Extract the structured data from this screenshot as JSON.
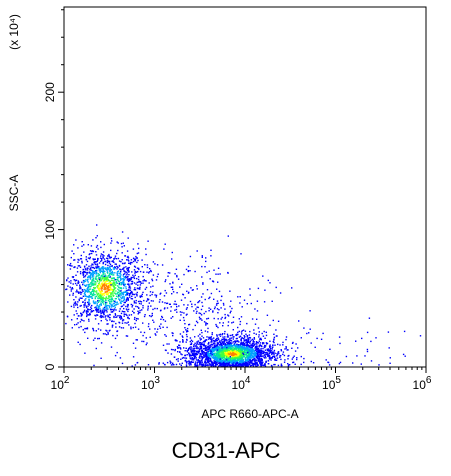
{
  "chart_data": {
    "type": "scatter",
    "style": "flow-cytometry density dot plot",
    "title": "",
    "caption": "CD31-APC",
    "xlabel": "APC R660-APC-A",
    "ylabel": "SSC-A",
    "y_multiplier_label": "(x 10⁴)",
    "x_scale": "log",
    "xlim": [
      100,
      1000000
    ],
    "x_ticks": [
      {
        "value": 100,
        "base": "10",
        "exp": "2"
      },
      {
        "value": 1000,
        "base": "10",
        "exp": "3"
      },
      {
        "value": 10000,
        "base": "10",
        "exp": "4"
      },
      {
        "value": 100000,
        "base": "10",
        "exp": "5"
      },
      {
        "value": 1000000,
        "base": "10",
        "exp": "6"
      }
    ],
    "y_scale": "linear",
    "ylim": [
      0,
      262
    ],
    "y_ticks": [
      {
        "value": 0,
        "label": "0"
      },
      {
        "value": 100,
        "label": "100"
      },
      {
        "value": 200,
        "label": "200"
      }
    ],
    "grid": false,
    "legend": "none",
    "density_colors": [
      "#0000ff",
      "#00a0ff",
      "#00e0a0",
      "#40ff40",
      "#ffff00",
      "#ff8000"
    ],
    "populations": [
      {
        "log_x_center": 2.45,
        "y_center": 58,
        "log_x_spread": 0.22,
        "y_spread": 14,
        "points": 1500
      },
      {
        "log_x_center": 3.85,
        "y_center": 10,
        "log_x_spread": 0.24,
        "y_spread": 6,
        "points": 2200
      },
      {
        "log_x_center": 3.3,
        "y_center": 40,
        "log_x_spread": 0.45,
        "y_spread": 22,
        "points": 500
      },
      {
        "log_x_center": 4.7,
        "y_center": 12,
        "log_x_spread": 0.6,
        "y_spread": 10,
        "points": 80
      }
    ]
  }
}
